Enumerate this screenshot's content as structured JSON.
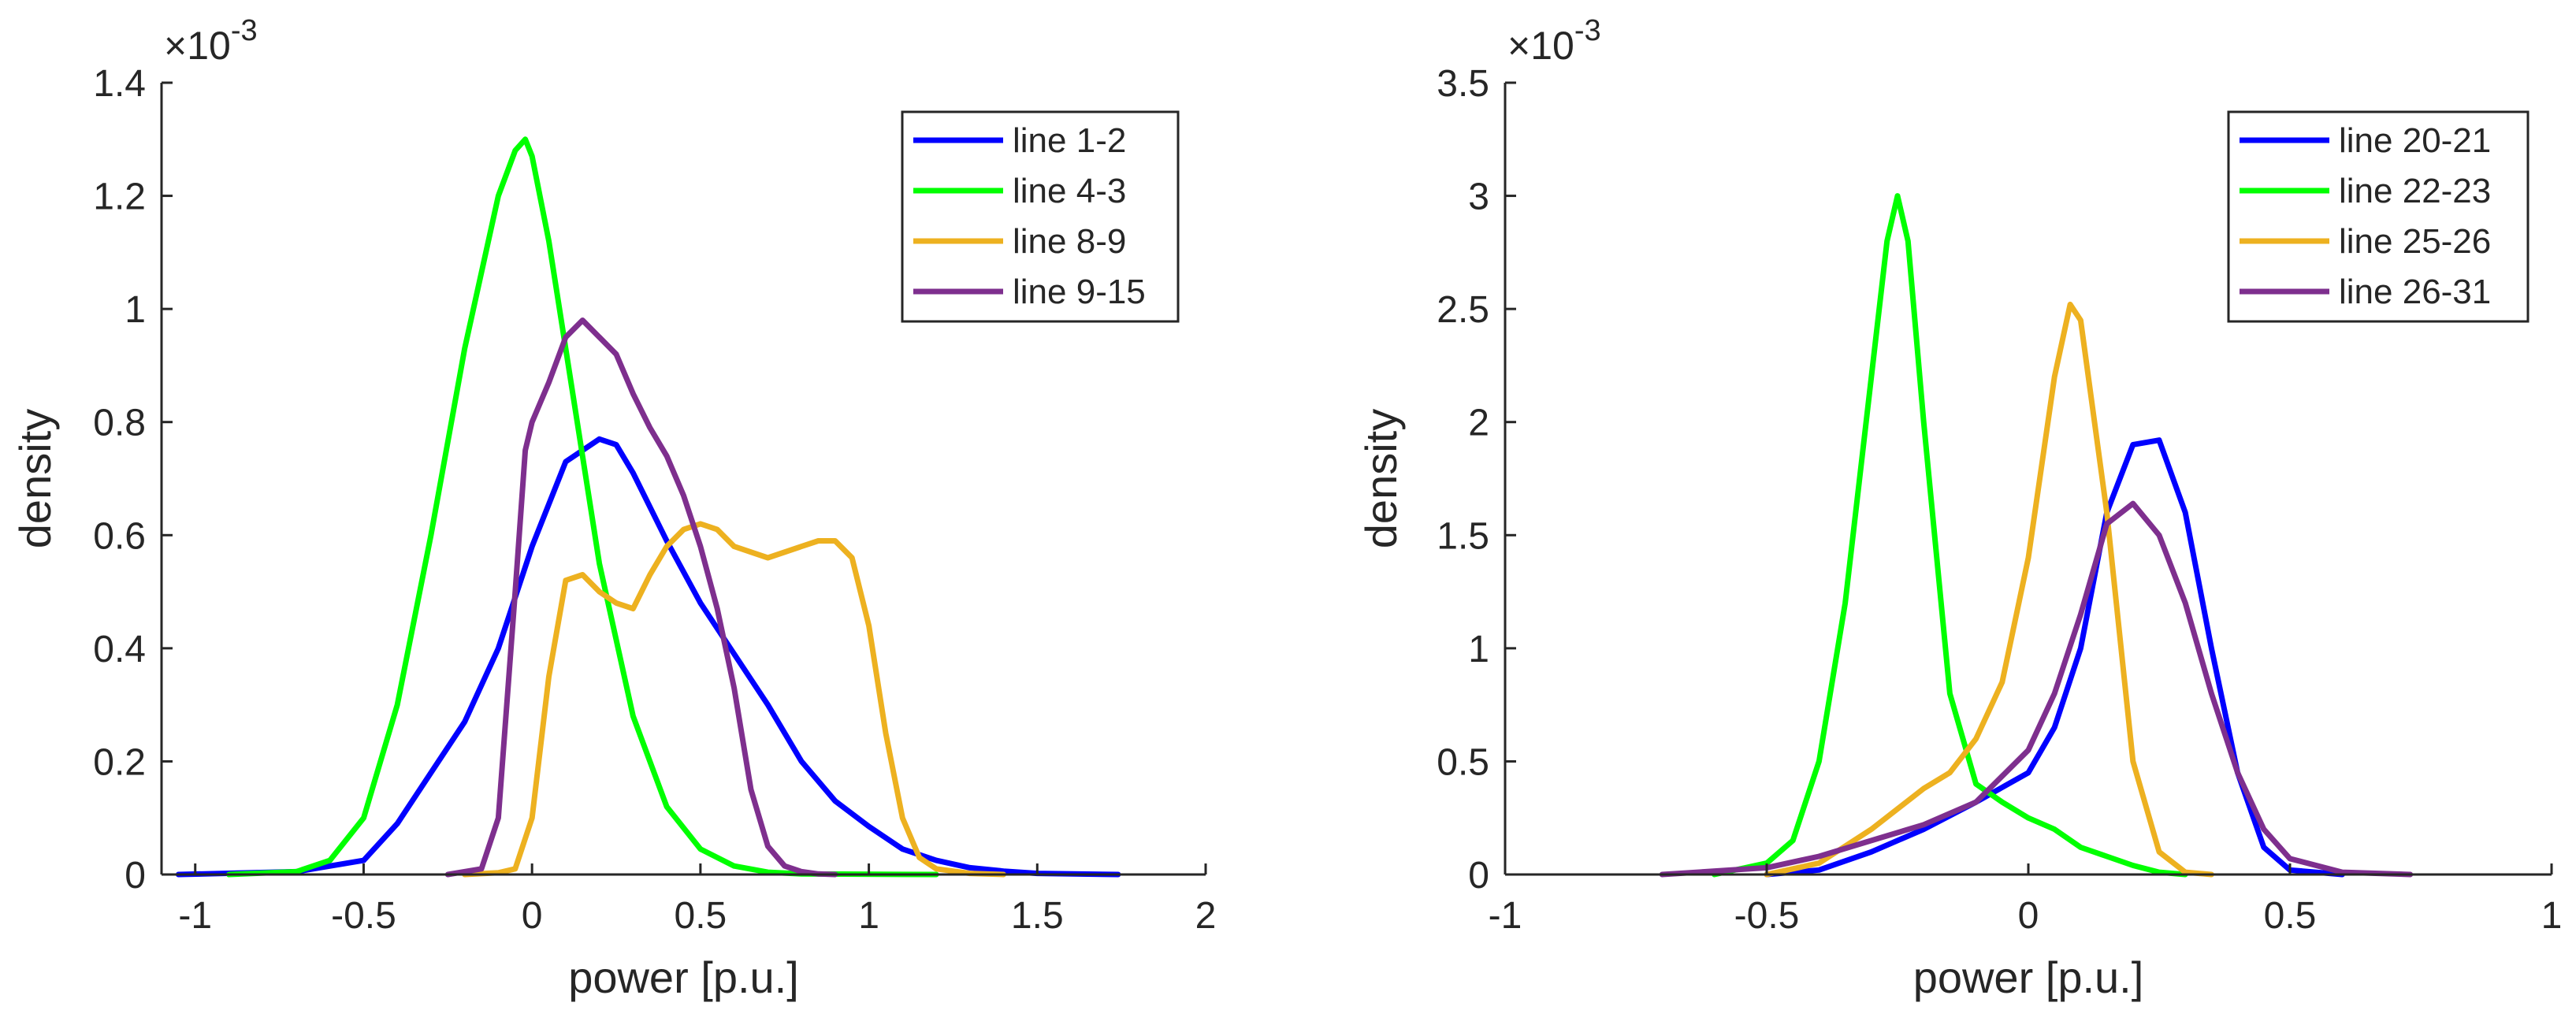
{
  "chart_data": [
    {
      "type": "line",
      "xlabel": "power [p.u.]",
      "ylabel": "density",
      "exponent_base": "×10",
      "exponent_power": "-3",
      "xlim": [
        -1.1,
        2.0
      ],
      "ylim": [
        0,
        1.4
      ],
      "xticks": [
        -1,
        -0.5,
        0,
        0.5,
        1,
        1.5,
        2
      ],
      "xtick_labels": [
        "-1",
        "-0.5",
        "0",
        "0.5",
        "1",
        "1.5",
        "2"
      ],
      "yticks": [
        0,
        0.2,
        0.4,
        0.6,
        0.8,
        1,
        1.2,
        1.4
      ],
      "ytick_labels": [
        "0",
        "0.2",
        "0.4",
        "0.6",
        "0.8",
        "1",
        "1.2",
        "1.4"
      ],
      "legend_position": "top-right",
      "series": [
        {
          "name": "line 1-2",
          "color": "#0000ff",
          "x": [
            -1.05,
            -0.7,
            -0.5,
            -0.4,
            -0.3,
            -0.2,
            -0.1,
            0,
            0.1,
            0.2,
            0.25,
            0.3,
            0.4,
            0.5,
            0.6,
            0.7,
            0.8,
            0.9,
            1.0,
            1.1,
            1.2,
            1.3,
            1.4,
            1.5,
            1.74
          ],
          "y": [
            0,
            0.005,
            0.025,
            0.09,
            0.18,
            0.27,
            0.4,
            0.58,
            0.73,
            0.77,
            0.76,
            0.71,
            0.59,
            0.48,
            0.39,
            0.3,
            0.2,
            0.13,
            0.085,
            0.045,
            0.025,
            0.012,
            0.006,
            0.002,
            0
          ]
        },
        {
          "name": "line 4-3",
          "color": "#00ff00",
          "x": [
            -0.9,
            -0.7,
            -0.6,
            -0.5,
            -0.4,
            -0.3,
            -0.2,
            -0.1,
            -0.05,
            -0.02,
            0.0,
            0.05,
            0.1,
            0.2,
            0.3,
            0.4,
            0.5,
            0.6,
            0.7,
            0.8,
            1.2
          ],
          "y": [
            0,
            0.005,
            0.025,
            0.1,
            0.3,
            0.6,
            0.93,
            1.2,
            1.28,
            1.3,
            1.27,
            1.12,
            0.93,
            0.55,
            0.28,
            0.12,
            0.045,
            0.015,
            0.004,
            0.001,
            0
          ]
        },
        {
          "name": "line 8-9",
          "color": "#edb120",
          "x": [
            -0.2,
            -0.1,
            -0.05,
            0.0,
            0.05,
            0.1,
            0.15,
            0.2,
            0.25,
            0.3,
            0.35,
            0.4,
            0.45,
            0.5,
            0.55,
            0.6,
            0.7,
            0.8,
            0.85,
            0.9,
            0.95,
            1.0,
            1.05,
            1.1,
            1.15,
            1.2,
            1.3,
            1.4
          ],
          "y": [
            0,
            0.003,
            0.01,
            0.1,
            0.35,
            0.52,
            0.53,
            0.5,
            0.48,
            0.47,
            0.53,
            0.58,
            0.61,
            0.62,
            0.61,
            0.58,
            0.56,
            0.58,
            0.59,
            0.59,
            0.56,
            0.44,
            0.25,
            0.1,
            0.03,
            0.01,
            0.002,
            0
          ]
        },
        {
          "name": "line 9-15",
          "color": "#7e2f8e",
          "x": [
            -0.25,
            -0.15,
            -0.1,
            -0.05,
            -0.02,
            0.0,
            0.05,
            0.1,
            0.15,
            0.2,
            0.25,
            0.3,
            0.35,
            0.4,
            0.45,
            0.5,
            0.55,
            0.6,
            0.65,
            0.7,
            0.75,
            0.8,
            0.85,
            0.9
          ],
          "y": [
            0,
            0.01,
            0.1,
            0.5,
            0.75,
            0.8,
            0.87,
            0.95,
            0.98,
            0.95,
            0.92,
            0.85,
            0.79,
            0.74,
            0.67,
            0.58,
            0.47,
            0.33,
            0.15,
            0.05,
            0.015,
            0.005,
            0.001,
            0
          ]
        }
      ]
    },
    {
      "type": "line",
      "xlabel": "power [p.u.]",
      "ylabel": "density",
      "exponent_base": "×10",
      "exponent_power": "-3",
      "xlim": [
        -1,
        1
      ],
      "ylim": [
        0,
        3.5
      ],
      "xticks": [
        -1,
        -0.5,
        0,
        0.5,
        1
      ],
      "xtick_labels": [
        "-1",
        "-0.5",
        "0",
        "0.5",
        "1"
      ],
      "yticks": [
        0,
        0.5,
        1,
        1.5,
        2,
        2.5,
        3,
        3.5
      ],
      "ytick_labels": [
        "0",
        "0.5",
        "1",
        "1.5",
        "2",
        "2.5",
        "3",
        "3.5"
      ],
      "legend_position": "top-right",
      "series": [
        {
          "name": "line 20-21",
          "color": "#0000ff",
          "x": [
            -0.5,
            -0.4,
            -0.3,
            -0.2,
            -0.1,
            0.0,
            0.05,
            0.1,
            0.15,
            0.2,
            0.25,
            0.3,
            0.35,
            0.4,
            0.45,
            0.5,
            0.6
          ],
          "y": [
            0,
            0.02,
            0.1,
            0.2,
            0.32,
            0.45,
            0.65,
            1.0,
            1.6,
            1.9,
            1.92,
            1.6,
            1.0,
            0.45,
            0.12,
            0.02,
            0
          ]
        },
        {
          "name": "line 22-23",
          "color": "#00ff00",
          "x": [
            -0.6,
            -0.5,
            -0.45,
            -0.4,
            -0.35,
            -0.3,
            -0.27,
            -0.25,
            -0.23,
            -0.2,
            -0.15,
            -0.1,
            -0.05,
            0.0,
            0.05,
            0.1,
            0.15,
            0.2,
            0.25,
            0.3
          ],
          "y": [
            0,
            0.05,
            0.15,
            0.5,
            1.2,
            2.2,
            2.8,
            3.0,
            2.8,
            2.0,
            0.8,
            0.4,
            0.32,
            0.25,
            0.2,
            0.12,
            0.08,
            0.04,
            0.01,
            0
          ]
        },
        {
          "name": "line 25-26",
          "color": "#edb120",
          "x": [
            -0.5,
            -0.4,
            -0.3,
            -0.2,
            -0.15,
            -0.1,
            -0.05,
            0.0,
            0.05,
            0.08,
            0.1,
            0.15,
            0.2,
            0.25,
            0.3,
            0.35
          ],
          "y": [
            0,
            0.05,
            0.2,
            0.38,
            0.45,
            0.6,
            0.85,
            1.4,
            2.2,
            2.52,
            2.45,
            1.6,
            0.5,
            0.1,
            0.01,
            0
          ]
        },
        {
          "name": "line 26-31",
          "color": "#7e2f8e",
          "x": [
            -0.7,
            -0.5,
            -0.4,
            -0.3,
            -0.2,
            -0.1,
            0.0,
            0.05,
            0.1,
            0.15,
            0.2,
            0.25,
            0.3,
            0.35,
            0.4,
            0.45,
            0.5,
            0.6,
            0.73
          ],
          "y": [
            0,
            0.03,
            0.08,
            0.15,
            0.22,
            0.32,
            0.55,
            0.8,
            1.15,
            1.55,
            1.64,
            1.5,
            1.2,
            0.8,
            0.45,
            0.2,
            0.07,
            0.01,
            0
          ]
        }
      ]
    }
  ]
}
